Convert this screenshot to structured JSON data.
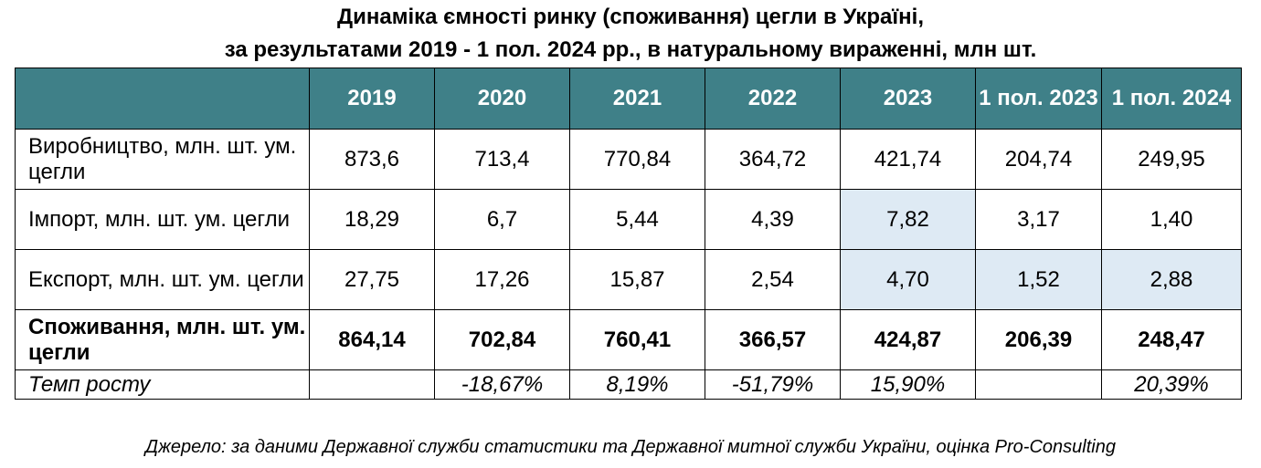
{
  "title": {
    "line1": "Динаміка ємності ринку (споживання)  цегли в Україні,",
    "line2": "за результатами 2019 - 1 пол. 2024 рр., в натуральному вираженні, млн шт."
  },
  "table": {
    "headers": [
      "",
      "2019",
      "2020",
      "2021",
      "2022",
      "2023",
      "1 пол. 2023",
      "1 пол. 2024"
    ],
    "rows": [
      {
        "label": "Виробництво, млн. шт. ум. цегли",
        "values": [
          "873,6",
          "713,4",
          "770,84",
          "364,72",
          "421,74",
          "204,74",
          "249,95"
        ]
      },
      {
        "label": "Імпорт, млн. шт. ум. цегли",
        "values": [
          "18,29",
          "6,7",
          "5,44",
          "4,39",
          "7,82",
          "3,17",
          "1,40"
        ]
      },
      {
        "label": "Експорт, млн. шт. ум. цегли",
        "values": [
          "27,75",
          "17,26",
          "15,87",
          "2,54",
          "4,70",
          "1,52",
          "2,88"
        ]
      },
      {
        "label": "Споживання, млн. шт. ум. цегли",
        "values": [
          "864,14",
          "702,84",
          "760,41",
          "366,57",
          "424,87",
          "206,39",
          "248,47"
        ]
      },
      {
        "label": "Темп росту",
        "values": [
          "",
          "-18,67%",
          "8,19%",
          "-51,79%",
          "15,90%",
          "",
          "20,39%"
        ]
      }
    ],
    "header_color": "#3f8088",
    "highlight_color": "#deeaf4"
  },
  "source": "Джерело: за даними Державної служби статистики та Державної митної служби України, оцінка Pro-Consulting"
}
